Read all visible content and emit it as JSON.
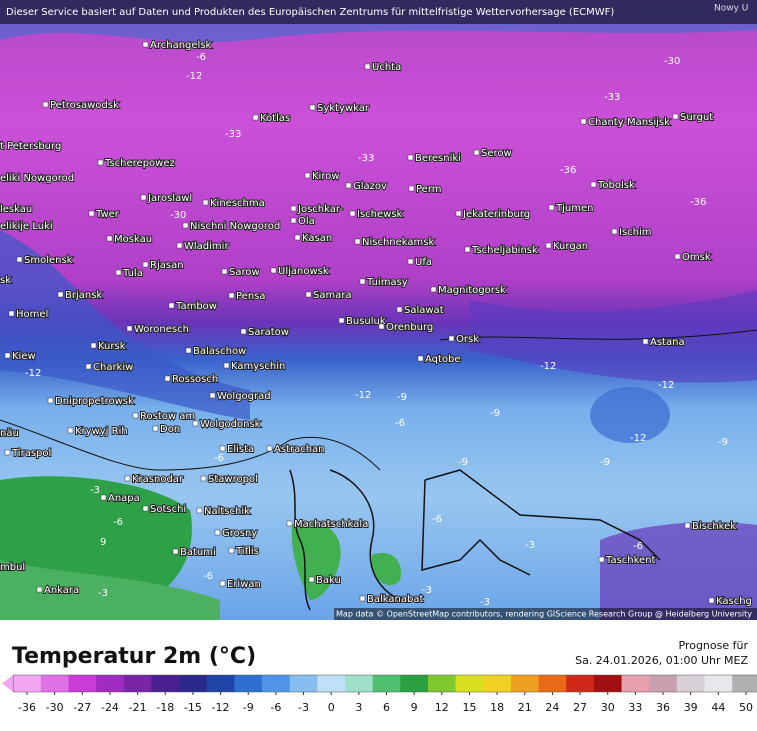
{
  "map": {
    "banner": "Dieser Service basiert auf Daten und Produkten des Europäischen Zentrums für mittelfristige Wettervorhersage (ECMWF)",
    "corner_label": "Nowy U",
    "attribution": "Map data © OpenStreetMap contributors, rendering GIScience Research Group @ Heidelberg University",
    "cities": [
      "Archangelsk",
      "Uchta",
      "Petrosawodsk",
      "Syktywkar",
      "Kotlas",
      "Chanty-Mansijsk",
      "Surgut",
      "t Petersburg",
      "Tscherepowez",
      "Beresniki",
      "Serow",
      "eliki Nowgorod",
      "Kirow",
      "Glazov",
      "Perm",
      "Tobolsk",
      "Jaroslawl",
      "Kineschma",
      "leskau",
      "Twer",
      "Joschkar-",
      "Ola",
      "Ischewsk",
      "Jekaterinburg",
      "Tjumen",
      "elikije Luki",
      "Nischni Nowgorod",
      "Moskau",
      "Wladimir",
      "Kasan",
      "Nischnekamsk",
      "Tscheljabinsk",
      "Kurgan",
      "Ischim",
      "Smolensk",
      "Rjasan",
      "Omsk",
      "Tula",
      "Sarow",
      "Uljanowsk",
      "Ufa",
      "Tuimasy",
      "sk",
      "Brjansk",
      "Pensa",
      "Samara",
      "Magnitogorsk",
      "Tambow",
      "Salawat",
      "Homel",
      "Busuluk",
      "Orenburg",
      "Woronesch",
      "Saratow",
      "Orsk",
      "Astana",
      "Kursk",
      "Balaschow",
      "Aqtobe",
      "Kiew",
      "Charkiw",
      "Kamyschin",
      "Rossosch",
      "Dnipropetrowsk",
      "Wolgograd",
      "Rostow am",
      "Don",
      "Krywyj Rih",
      "Wolgodonsk",
      "näu",
      "Elista",
      "Astrachan",
      "Tiraspol",
      "Stawropol",
      "Krasnodar",
      "Anapa",
      "Sotschi",
      "Naltschik",
      "Machatschkala",
      "Grosny",
      "Batumi",
      "Tiflis",
      "Bischkek",
      "Taschkent",
      "Eriwan",
      "Baku",
      "Ankara",
      "Balkanabat",
      "mbul",
      "Kaschg"
    ],
    "contour_labels": [
      -6,
      -12,
      -30,
      -33,
      -33,
      -36,
      -36,
      -33,
      -30,
      -12,
      -12,
      -12,
      -12,
      -9,
      -6,
      -9,
      -9,
      -9,
      -9,
      -12,
      -6,
      -3,
      -6,
      -6,
      -3,
      -6,
      9,
      -3,
      -3,
      -6,
      -3
    ]
  },
  "legend": {
    "title": "Temperatur 2m (°C)",
    "forecast_label": "Prognose für",
    "forecast_time": "Sa. 24.01.2026, 01:00 Uhr MEZ",
    "ticks": [
      -36,
      -30,
      -27,
      -24,
      -21,
      -18,
      -15,
      -12,
      -9,
      -6,
      -3,
      0,
      3,
      6,
      9,
      12,
      15,
      18,
      21,
      24,
      27,
      30,
      33,
      36,
      39,
      44,
      50
    ],
    "colors": [
      "#f2a6f2",
      "#e070e6",
      "#c93cd6",
      "#a12cc0",
      "#7a24a8",
      "#4a1f8f",
      "#2a2a8c",
      "#1f45a8",
      "#2f6fd0",
      "#4f94e6",
      "#86bdf0",
      "#bfe0f6",
      "#9fe0c8",
      "#50c070",
      "#2aa040",
      "#80c830",
      "#d8e020",
      "#f0d020",
      "#f0a020",
      "#e86a18",
      "#d02818",
      "#a01010",
      "#e8a0b0",
      "#c8a0b0",
      "#d8d0d8",
      "#e8e8ec",
      "#b0b0b0"
    ]
  }
}
